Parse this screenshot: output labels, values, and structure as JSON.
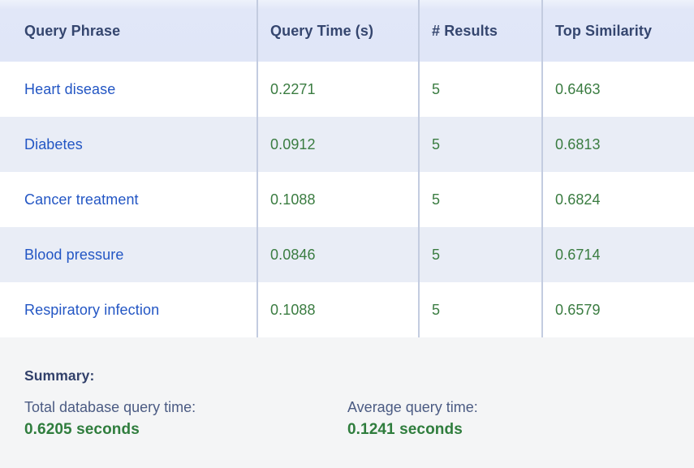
{
  "table": {
    "columns": [
      {
        "label": "Query Phrase"
      },
      {
        "label": "Query Time (s)"
      },
      {
        "label": "# Results"
      },
      {
        "label": "Top Similarity"
      }
    ],
    "rows": [
      {
        "phrase": "Heart disease",
        "query_time": "0.2271",
        "num_results": "5",
        "top_similarity": "0.6463"
      },
      {
        "phrase": "Diabetes",
        "query_time": "0.0912",
        "num_results": "5",
        "top_similarity": "0.6813"
      },
      {
        "phrase": "Cancer treatment",
        "query_time": "0.1088",
        "num_results": "5",
        "top_similarity": "0.6824"
      },
      {
        "phrase": "Blood pressure",
        "query_time": "0.0846",
        "num_results": "5",
        "top_similarity": "0.6714"
      },
      {
        "phrase": "Respiratory infection",
        "query_time": "0.1088",
        "num_results": "5",
        "top_similarity": "0.6579"
      }
    ]
  },
  "summary": {
    "title": "Summary:",
    "total_label": "Total database query time:",
    "total_value": "0.6205 seconds",
    "average_label": "Average query time:",
    "average_value": "0.1241 seconds"
  },
  "colors": {
    "header_bg": "#e1e7f8",
    "stripe_row_bg": "#e9edf6",
    "white_row_bg": "#ffffff",
    "footer_bg": "#f4f5f6",
    "column_divider": "#c3cce0",
    "header_text": "#35466f",
    "phrase_text": "#2356c4",
    "metric_green": "#3a7c41",
    "summary_title_text": "#31406a",
    "summary_label_text": "#4b5b83"
  }
}
